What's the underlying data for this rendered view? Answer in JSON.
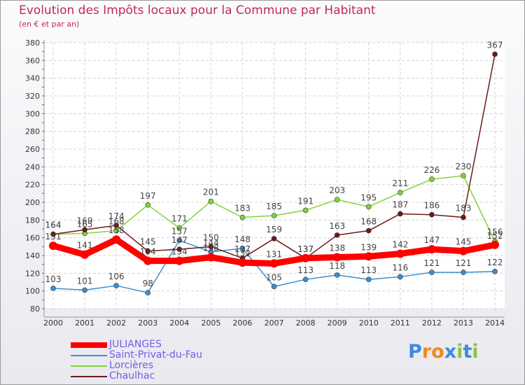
{
  "title": "Evolution des Impôts locaux pour la Commune par Habitant",
  "subtitle": "(en € et par an)",
  "logo": {
    "letters": [
      {
        "ch": "P",
        "color": "#3d8be0"
      },
      {
        "ch": "r",
        "color": "#f08a1c"
      },
      {
        "ch": "o",
        "color": "#f08a1c"
      },
      {
        "ch": "x",
        "color": "#3d8be0"
      },
      {
        "ch": "i",
        "color": "#8cc63f"
      },
      {
        "ch": "t",
        "color": "#3d8be0"
      },
      {
        "ch": "i",
        "color": "#8cc63f"
      }
    ]
  },
  "chart_data": {
    "type": "line",
    "title": "Evolution des Impôts locaux pour la Commune par Habitant",
    "subtitle": "(en € et par an)",
    "x": [
      "2000",
      "2001",
      "2002",
      "2003",
      "2004",
      "2005",
      "2006",
      "2007",
      "2008",
      "2009",
      "2010",
      "2011",
      "2012",
      "2013",
      "2014"
    ],
    "ylim": [
      80,
      380
    ],
    "yticks": [
      80,
      100,
      120,
      140,
      160,
      180,
      200,
      220,
      240,
      260,
      280,
      300,
      320,
      340,
      360,
      380
    ],
    "grid": true,
    "legend_position": "bottom-left",
    "series": [
      {
        "name": "JULIANGES",
        "color": "#ff0000",
        "labels": false,
        "values": [
          151,
          141,
          158,
          134,
          134,
          138,
          132,
          131,
          137,
          138,
          139,
          142,
          147,
          145,
          152
        ]
      },
      {
        "name": "Saint-Privat-du-Fau",
        "color": "#3b8fd0",
        "labels": true,
        "values": [
          103,
          101,
          106,
          98,
          157,
          144,
          148,
          105,
          113,
          118,
          113,
          116,
          121,
          121,
          122
        ]
      },
      {
        "name": "Lorcières",
        "color": "#7fd43a",
        "labels": true,
        "values": [
          164,
          165,
          168,
          197,
          171,
          201,
          183,
          185,
          191,
          203,
          195,
          211,
          226,
          230,
          156
        ]
      },
      {
        "name": "Chaulhac",
        "color": "#6e1a1a",
        "labels": true,
        "values": [
          164,
          169,
          174,
          145,
          147,
          150,
          137,
          159,
          137,
          163,
          168,
          187,
          186,
          183,
          367
        ]
      }
    ]
  }
}
